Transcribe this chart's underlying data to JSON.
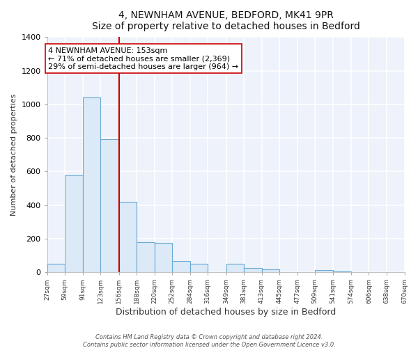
{
  "title": "4, NEWNHAM AVENUE, BEDFORD, MK41 9PR",
  "subtitle": "Size of property relative to detached houses in Bedford",
  "xlabel": "Distribution of detached houses by size in Bedford",
  "ylabel": "Number of detached properties",
  "bar_edges": [
    27,
    59,
    91,
    123,
    156,
    188,
    220,
    252,
    284,
    316,
    349,
    381,
    413,
    445,
    477,
    509,
    541,
    574,
    606,
    638,
    670
  ],
  "bar_heights": [
    48,
    575,
    1040,
    790,
    420,
    178,
    175,
    65,
    50,
    0,
    48,
    25,
    15,
    0,
    0,
    12,
    5,
    0,
    0,
    0
  ],
  "bar_color": "#dce9f7",
  "bar_edge_color": "#6aaad4",
  "vline_x": 156,
  "vline_color": "#cc0000",
  "annotation_title": "4 NEWNHAM AVENUE: 153sqm",
  "annotation_line1": "← 71% of detached houses are smaller (2,369)",
  "annotation_line2": "29% of semi-detached houses are larger (964) →",
  "annotation_box_facecolor": "#ffffff",
  "annotation_box_edgecolor": "#cc0000",
  "ylim": [
    0,
    1400
  ],
  "yticks": [
    0,
    200,
    400,
    600,
    800,
    1000,
    1200,
    1400
  ],
  "tick_labels": [
    "27sqm",
    "59sqm",
    "91sqm",
    "123sqm",
    "156sqm",
    "188sqm",
    "220sqm",
    "252sqm",
    "284sqm",
    "316sqm",
    "349sqm",
    "381sqm",
    "413sqm",
    "445sqm",
    "477sqm",
    "509sqm",
    "541sqm",
    "574sqm",
    "606sqm",
    "638sqm",
    "670sqm"
  ],
  "footer1": "Contains HM Land Registry data © Crown copyright and database right 2024.",
  "footer2": "Contains public sector information licensed under the Open Government Licence v3.0.",
  "bg_color": "#ffffff",
  "plot_bg_color": "#edf2fb",
  "grid_color": "#ffffff"
}
